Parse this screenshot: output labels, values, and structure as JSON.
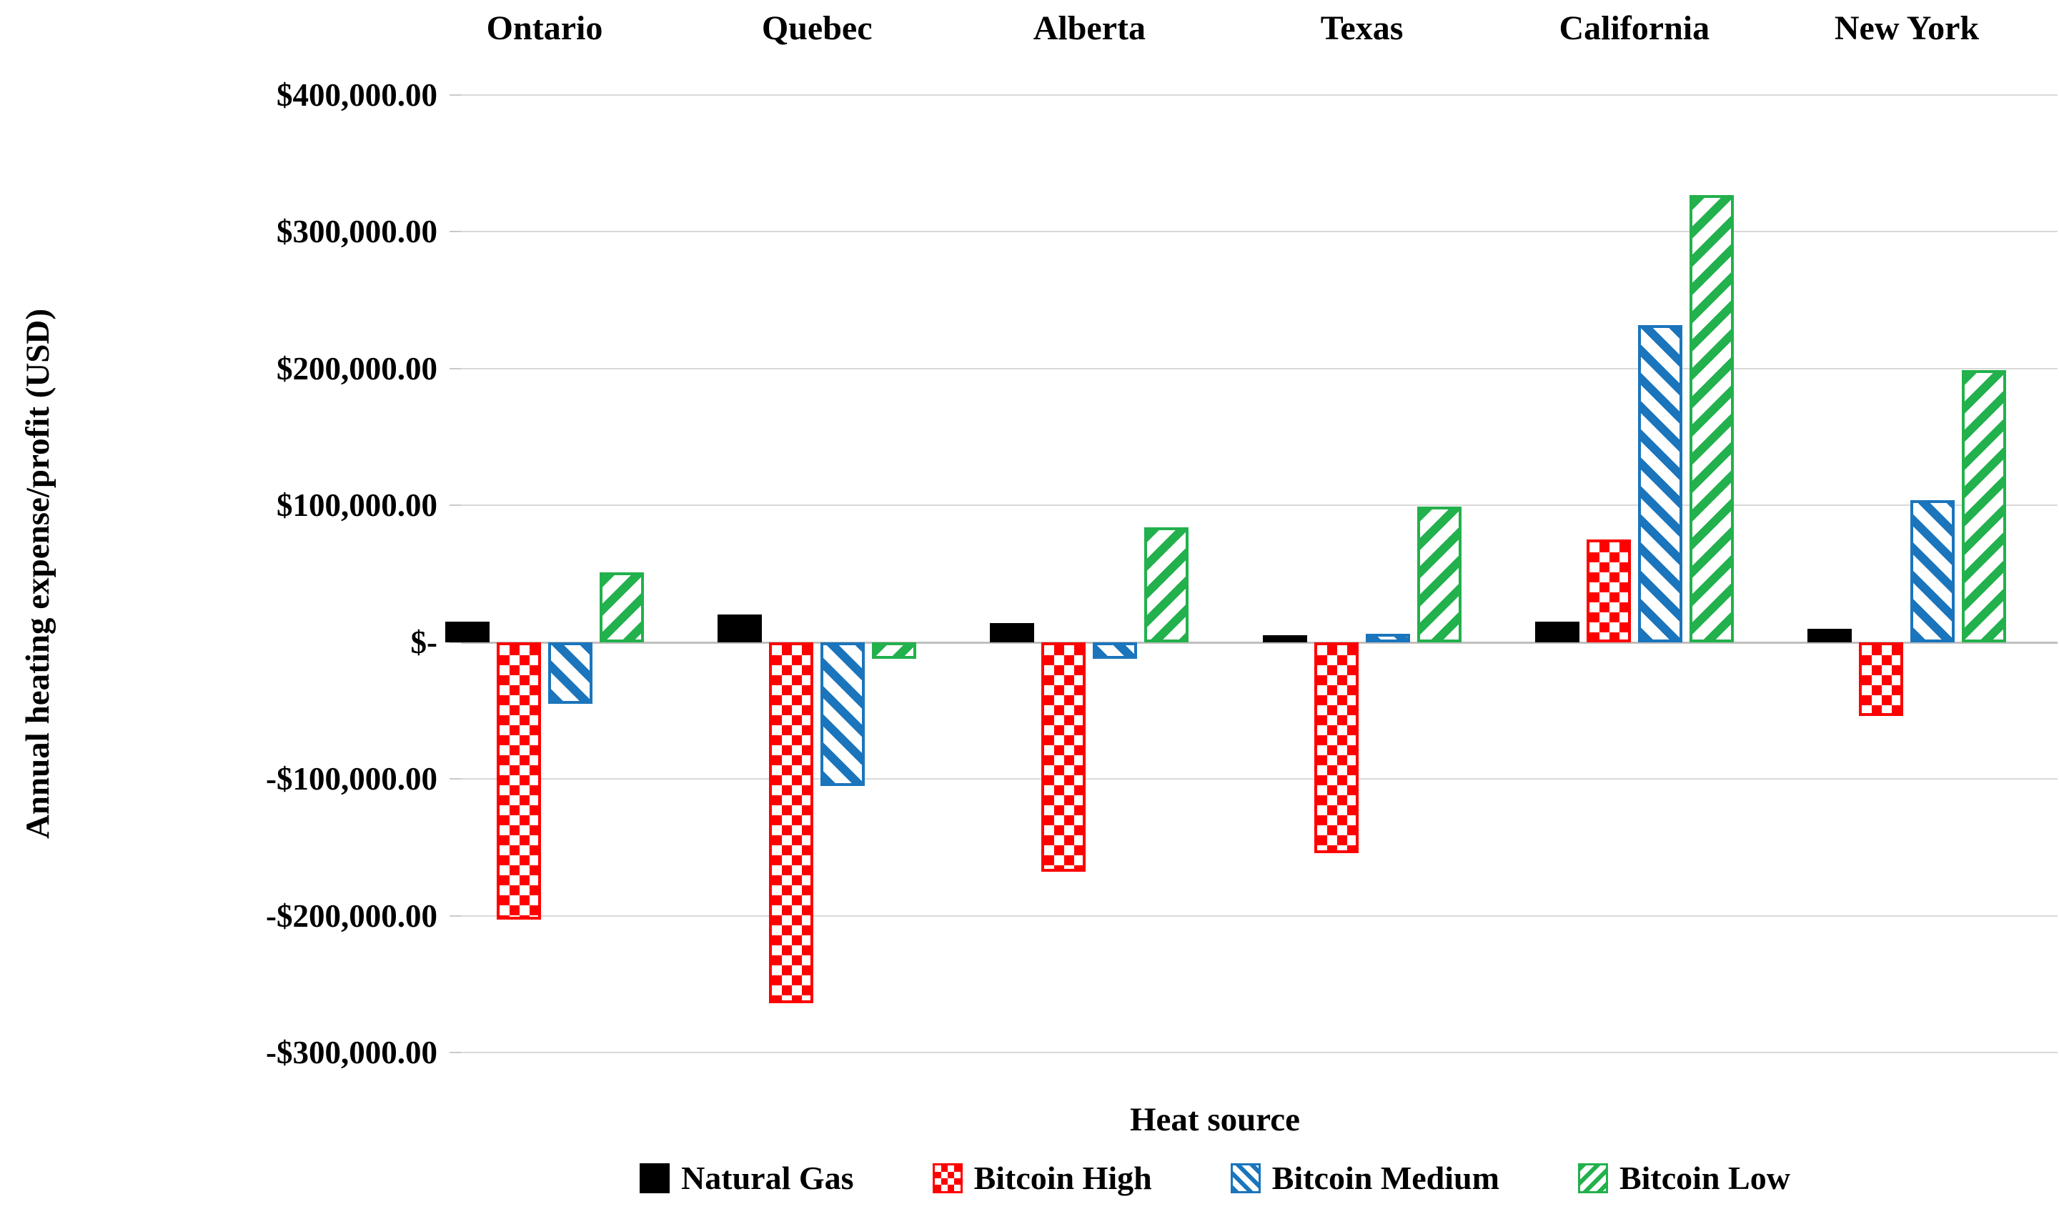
{
  "chart_data": {
    "type": "bar",
    "title": "",
    "xlabel": "Heat source",
    "ylabel": "Annual heating expense/profit (USD)",
    "categories": [
      "Ontario",
      "Quebec",
      "Alberta",
      "Texas",
      "California",
      "New York"
    ],
    "series": [
      {
        "name": "Natural Gas",
        "color": "#000000",
        "pattern": "solid",
        "values": [
          15000,
          20000,
          14000,
          5000,
          15000,
          10000
        ]
      },
      {
        "name": "Bitcoin High",
        "color": "#FF0000",
        "pattern": "checker",
        "values": [
          -203000,
          -264000,
          -168000,
          -154000,
          75000,
          -54000
        ]
      },
      {
        "name": "Bitcoin Medium",
        "color": "#1B75BC",
        "pattern": "stripe-down",
        "values": [
          -45000,
          -105000,
          -12000,
          6000,
          232000,
          104000
        ]
      },
      {
        "name": "Bitcoin Low",
        "color": "#22B14C",
        "pattern": "stripe-up",
        "values": [
          51000,
          -12000,
          84000,
          99000,
          327000,
          199000
        ]
      }
    ],
    "y_ticks": [
      {
        "value": 400000,
        "label": "$400,000.00"
      },
      {
        "value": 300000,
        "label": "$300,000.00"
      },
      {
        "value": 200000,
        "label": "$200,000.00"
      },
      {
        "value": 100000,
        "label": "$100,000.00"
      },
      {
        "value": 0,
        "label": "$-"
      },
      {
        "value": -100000,
        "label": "-$100,000.00"
      },
      {
        "value": -200000,
        "label": "-$200,000.00"
      },
      {
        "value": -300000,
        "label": "-$300,000.00"
      }
    ],
    "ylim": [
      -300000,
      400000
    ],
    "grid": true,
    "legend_position": "bottom",
    "category_labels_position": "top"
  },
  "colors": {
    "gridline": "#D9D9D9",
    "zero_line": "#BFBFBF",
    "text": "#000000",
    "background": "#FFFFFF"
  }
}
